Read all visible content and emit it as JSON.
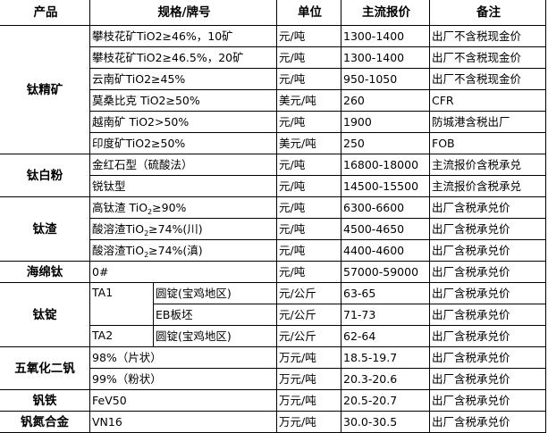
{
  "headers": [
    "产品",
    "规格/牌号",
    "单位",
    "主流报价",
    "备注"
  ],
  "groups": [
    {
      "product": "钛精矿",
      "rows": [
        {
          "spec": "攀枝花矿TiO2≥46%，10矿",
          "unit": "元/吨",
          "price": "1300-1400",
          "note": "出厂不含税现金价"
        },
        {
          "spec": "攀枝花矿TiO2≥46.5%，20矿",
          "unit": "元/吨",
          "price": "1300-1400",
          "note": "出厂不含税现金价"
        },
        {
          "spec": "云南矿TiO2≥45%",
          "unit": "元/吨",
          "price": "950-1050",
          "note": "出厂不含税现金价"
        },
        {
          "spec": "莫桑比克 TiO2≥50%",
          "unit": "美元/吨",
          "price": "260",
          "note": "CFR"
        },
        {
          "spec": "越南矿 TiO2>50%",
          "unit": "元/吨",
          "price": "1900",
          "note": "防城港含税出厂"
        },
        {
          "spec": "印度矿TiO2≥50%",
          "unit": "美元/吨",
          "price": "250",
          "note": "FOB"
        }
      ]
    },
    {
      "product": "钛白粉",
      "rows": [
        {
          "spec": "金红石型（硫酸法）",
          "unit": "元/吨",
          "price": "16800-18000",
          "note": "主流报价含税承兑"
        },
        {
          "spec": "锐钛型",
          "unit": "元/吨",
          "price": "14500-15500",
          "note": "主流报价含税承兑"
        }
      ]
    },
    {
      "product": "钛渣",
      "rows": [
        {
          "spec_pre": "高钛渣 TiO",
          "spec_sub": "2",
          "spec_post": "≥90%",
          "unit": "元/吨",
          "price": "6300-6600",
          "note": "出厂含税承兑价"
        },
        {
          "spec_pre": "酸溶渣TiO",
          "spec_sub": "2",
          "spec_post": "≥74%(川)",
          "unit": "元/吨",
          "price": "4500-4650",
          "note": "出厂含税承兑价"
        },
        {
          "spec_pre": "酸溶渣TiO",
          "spec_sub": "2",
          "spec_post": "≥74%(滇)",
          "unit": "元/吨",
          "price": "4400-4600",
          "note": "出厂含税承兑价"
        }
      ]
    },
    {
      "product": "海绵钛",
      "rows": [
        {
          "spec": "0#",
          "unit": "元/吨",
          "price": "57000-59000",
          "note": "出厂含税承兑价"
        }
      ]
    },
    {
      "product": "钛锭",
      "rows": [
        {
          "grade": "TA1",
          "form": "圆锭(宝鸡地区)",
          "unit": "元/公斤",
          "price": "63-65",
          "note": "出厂含税承兑价"
        },
        {
          "form": "EB板坯",
          "unit": "元/公斤",
          "price": "71-73",
          "note": "出厂含税承兑价"
        },
        {
          "grade": "TA2",
          "form": "圆锭(宝鸡地区)",
          "unit": "元/公斤",
          "price": "62-64",
          "note": "出厂含税承兑价"
        }
      ]
    },
    {
      "product": "五氧化二钒",
      "rows": [
        {
          "spec": "98%（片状）",
          "unit": "万元/吨",
          "price": "18.5-19.7",
          "note": "出厂含税承兑价"
        },
        {
          "spec": "99%（粉状）",
          "unit": "万元/吨",
          "price": "20.3-20.6",
          "note": "出厂含税承兑价"
        }
      ]
    },
    {
      "product": "钒铁",
      "rows": [
        {
          "spec": "FeV50",
          "unit": "万元/吨",
          "price": "20.5-20.7",
          "note": "出厂含税承兑价"
        }
      ]
    },
    {
      "product": "钒氮合金",
      "rows": [
        {
          "spec": "VN16",
          "unit": "万元/吨",
          "price": "30.0-30.5",
          "note": "出厂含税承兑价"
        }
      ]
    }
  ]
}
